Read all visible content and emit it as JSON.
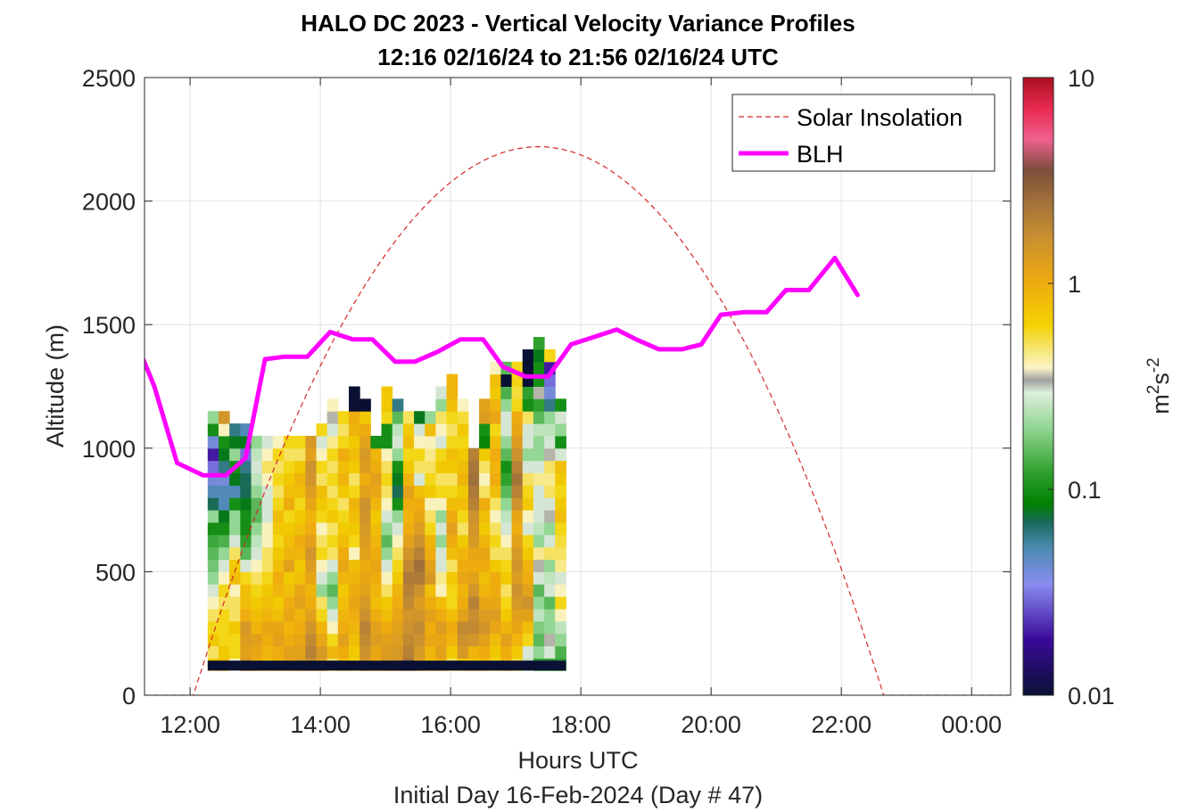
{
  "chart_data": {
    "type": "heatmap",
    "title_line1": "HALO DC 2023 - Vertical Velocity Variance Profiles",
    "title_line2": "12:16 02/16/24 to 21:56 02/16/24  UTC",
    "xlabel": "Hours UTC",
    "xlabel2": "Initial Day 16-Feb-2024 (Day # 47)",
    "ylabel": "Altitude (m)",
    "xlim_hours": [
      11.3,
      24.6
    ],
    "ylim": [
      0,
      2500
    ],
    "x_ticks": [
      {
        "value": 12,
        "label": "12:00"
      },
      {
        "value": 14,
        "label": "14:00"
      },
      {
        "value": 16,
        "label": "16:00"
      },
      {
        "value": 18,
        "label": "18:00"
      },
      {
        "value": 20,
        "label": "20:00"
      },
      {
        "value": 22,
        "label": "22:00"
      },
      {
        "value": 24,
        "label": "00:00"
      }
    ],
    "y_ticks": [
      {
        "value": 0,
        "label": "0"
      },
      {
        "value": 500,
        "label": "500"
      },
      {
        "value": 1000,
        "label": "1000"
      },
      {
        "value": 1500,
        "label": "1500"
      },
      {
        "value": 2000,
        "label": "2000"
      },
      {
        "value": 2500,
        "label": "2500"
      }
    ],
    "grid": true,
    "legend": {
      "location": "top-right",
      "entries": [
        {
          "name": "Solar Insolation",
          "color": "#d62728",
          "style": "dashed"
        },
        {
          "name": "BLH",
          "color": "#ff00ff",
          "style": "solid"
        }
      ]
    },
    "colorbar": {
      "label": "m²s⁻²",
      "label_base": "m",
      "label_sup1": "2",
      "label_mid": "s",
      "label_sup2": "-2",
      "scale": "log",
      "range": [
        0.01,
        10
      ],
      "ticks": [
        {
          "value": 0.01,
          "label": "0.01"
        },
        {
          "value": 0.1,
          "label": "0.1"
        },
        {
          "value": 1,
          "label": "1"
        },
        {
          "value": 10,
          "label": "10"
        }
      ],
      "colormap": [
        {
          "pos": 0.0,
          "color": "#0a1033"
        },
        {
          "pos": 0.09,
          "color": "#3a0a9a"
        },
        {
          "pos": 0.18,
          "color": "#8a8cf0"
        },
        {
          "pos": 0.24,
          "color": "#4a8ab0"
        },
        {
          "pos": 0.28,
          "color": "#1a6a5a"
        },
        {
          "pos": 0.31,
          "color": "#008000"
        },
        {
          "pos": 0.36,
          "color": "#2ea02e"
        },
        {
          "pos": 0.43,
          "color": "#8fd48f"
        },
        {
          "pos": 0.49,
          "color": "#dcefdc"
        },
        {
          "pos": 0.51,
          "color": "#a0a0a0"
        },
        {
          "pos": 0.53,
          "color": "#fbf4c8"
        },
        {
          "pos": 0.6,
          "color": "#f2d200"
        },
        {
          "pos": 0.67,
          "color": "#eeaa10"
        },
        {
          "pos": 0.74,
          "color": "#c99030"
        },
        {
          "pos": 0.8,
          "color": "#a0703a"
        },
        {
          "pos": 0.85,
          "color": "#7d4d3b"
        },
        {
          "pos": 0.9,
          "color": "#f06090"
        },
        {
          "pos": 0.95,
          "color": "#e82a50"
        },
        {
          "pos": 1.0,
          "color": "#aa1020"
        }
      ]
    },
    "heatmap": {
      "time_start": 12.27,
      "time_step": 0.1667,
      "alt_start": 100,
      "alt_step": 50,
      "columns": [
        {
          "top": 1450,
          "vals": [
            0.7,
            0.5,
            0.7,
            0.6,
            0.5,
            0.4,
            0.3,
            0.2,
            0.17,
            0.15,
            0.13,
            0.1,
            0.2,
            0.07,
            0.05,
            0.04,
            0.03,
            0.02,
            0.04,
            0.1,
            0.2
          ]
        },
        {
          "top": 1500,
          "vals": [
            0.8,
            0.7,
            0.6,
            0.6,
            0.6,
            0.5,
            0.6,
            0.4,
            0.3,
            0.2,
            0.14,
            0.1,
            0.08,
            0.05,
            0.05,
            0.04,
            0.06,
            0.08,
            0.1,
            0.4,
            1.5
          ]
        },
        {
          "top": 1450,
          "vals": [
            0.4,
            0.6,
            0.6,
            0.7,
            0.5,
            0.5,
            0.4,
            0.8,
            0.7,
            0.5,
            0.3,
            0.2,
            0.2,
            0.1,
            0.05,
            0.08,
            0.1,
            0.2,
            0.08,
            0.06
          ]
        },
        {
          "top": 1500,
          "vals": [
            1.5,
            1.2,
            1.3,
            1.4,
            1.0,
            0.8,
            0.8,
            0.6,
            0.3,
            0.15,
            0.12,
            0.1,
            0.1,
            0.08,
            0.07,
            0.07,
            0.06,
            0.03,
            0.08,
            0.05
          ]
        },
        {
          "top": 1450,
          "vals": [
            1.0,
            1.1,
            1.2,
            0.9,
            0.8,
            0.7,
            0.6,
            0.5,
            0.4,
            0.3,
            0.25,
            0.2,
            0.15,
            0.15,
            0.2,
            0.25,
            0.3,
            0.25,
            0.2
          ]
        },
        {
          "top": 1450,
          "vals": [
            0.8,
            0.9,
            1.0,
            1.1,
            0.9,
            0.8,
            0.7,
            0.6,
            0.5,
            0.5,
            0.4,
            0.4,
            0.3,
            0.3,
            0.3,
            0.4,
            0.5,
            0.4,
            0.3
          ]
        },
        {
          "top": 1450,
          "vals": [
            0.9,
            1.0,
            1.2,
            1.1,
            0.8,
            0.7,
            0.9,
            1.0,
            0.8,
            0.7,
            0.6,
            0.7,
            0.8,
            0.6,
            0.5,
            0.6,
            0.5,
            0.6,
            0.4
          ]
        },
        {
          "top": 1450,
          "vals": [
            1.1,
            1.2,
            1.0,
            0.9,
            1.1,
            1.0,
            0.8,
            0.7,
            1.2,
            0.9,
            0.8,
            0.7,
            0.6,
            1.0,
            0.8,
            0.7,
            0.6,
            0.5,
            0.6
          ]
        },
        {
          "top": 1450,
          "vals": [
            1.3,
            1.2,
            1.1,
            1.0,
            0.9,
            1.2,
            1.1,
            0.8,
            0.7,
            0.9,
            1.0,
            0.8,
            0.7,
            0.6,
            0.8,
            0.9,
            0.7,
            0.5,
            0.6
          ]
        },
        {
          "top": 1450,
          "vals": [
            1.6,
            2.0,
            1.8,
            1.5,
            1.2,
            1.0,
            0.9,
            1.1,
            1.3,
            1.5,
            1.2,
            1.0,
            0.9,
            1.1,
            1.3,
            1.5,
            1.6,
            1.2,
            1.4
          ]
        },
        {
          "top": 1500,
          "vals": [
            1.2,
            1.4,
            1.1,
            0.9,
            0.6,
            0.5,
            0.2,
            0.3,
            0.4,
            0.6,
            0.5,
            0.4,
            0.6,
            0.7,
            0.8,
            0.5,
            0.6,
            0.4,
            0.3,
            0.6
          ]
        },
        {
          "top": 1600,
          "vals": [
            0.5,
            0.9,
            0.6,
            0.4,
            0.3,
            0.2,
            0.15,
            0.2,
            0.3,
            0.5,
            0.6,
            0.5,
            0.7,
            0.6,
            0.5,
            0.6,
            0.5,
            0.6,
            0.45,
            0.3,
            0.35,
            0.4
          ]
        },
        {
          "top": 1550,
          "vals": [
            0.8,
            1.0,
            1.2,
            1.0,
            0.9,
            0.8,
            0.7,
            0.9,
            1.1,
            1.0,
            0.8,
            0.7,
            0.6,
            0.5,
            0.7,
            0.9,
            0.8,
            1.0,
            0.6,
            0.5,
            0.6
          ]
        },
        {
          "top": 1650,
          "vals": [
            0.6,
            0.7,
            0.8,
            0.9,
            1.0,
            1.1,
            1.0,
            0.9,
            0.8,
            0.4,
            0.6,
            0.7,
            0.8,
            0.9,
            0.6,
            0.5,
            0.7,
            0.8,
            0.7,
            0.9,
            1.0,
            0.01,
            0.01
          ]
        },
        {
          "top": 1600,
          "vals": [
            1.4,
            1.6,
            1.8,
            2.0,
            1.6,
            1.4,
            1.2,
            1.1,
            1.0,
            1.2,
            1.3,
            1.4,
            1.5,
            1.6,
            1.2,
            1.0,
            1.3,
            1.4,
            1.2,
            1.0,
            0.7,
            0.01
          ]
        },
        {
          "top": 1450,
          "vals": [
            1.0,
            1.1,
            1.3,
            1.2,
            1.0,
            0.8,
            0.9,
            1.0,
            1.1,
            1.0,
            0.9,
            0.8,
            0.7,
            0.9,
            1.1,
            1.2,
            1.0,
            0.9,
            0.1
          ]
        },
        {
          "top": 1650,
          "vals": [
            1.4,
            1.3,
            1.2,
            1.0,
            0.8,
            0.7,
            0.5,
            0.4,
            0.3,
            0.2,
            0.15,
            0.2,
            0.3,
            0.4,
            0.5,
            0.6,
            0.5,
            0.4,
            0.1,
            0.1,
            0.6,
            0.7,
            0.7
          ]
        },
        {
          "top": 1600,
          "vals": [
            1.5,
            1.4,
            1.3,
            1.2,
            1.1,
            1.0,
            0.9,
            0.7,
            0.6,
            0.5,
            0.4,
            0.3,
            0.2,
            0.1,
            0.07,
            0.08,
            0.1,
            0.2,
            0.3,
            0.25,
            0.15,
            0.06
          ]
        },
        {
          "top": 1550,
          "vals": [
            2.5,
            2.0,
            1.8,
            1.6,
            1.5,
            1.8,
            2.0,
            2.2,
            1.8,
            1.5,
            1.2,
            1.0,
            0.9,
            1.0,
            1.2,
            0.9,
            0.7,
            0.6,
            0.8,
            0.7,
            0.5
          ]
        },
        {
          "top": 1550,
          "vals": [
            1.2,
            1.4,
            1.6,
            1.8,
            1.5,
            1.3,
            1.6,
            2.2,
            2.5,
            2.0,
            1.6,
            1.3,
            1.1,
            1.0,
            0.8,
            0.3,
            0.5,
            0.6,
            0.4,
            0.3,
            0.08
          ]
        },
        {
          "top": 1550,
          "vals": [
            0.8,
            0.9,
            1.1,
            1.0,
            1.2,
            1.0,
            0.8,
            1.4,
            1.2,
            1.0,
            0.9,
            0.6,
            0.5,
            0.4,
            0.7,
            0.6,
            0.5,
            0.45,
            0.4,
            0.8,
            0.2
          ]
        },
        {
          "top": 1650,
          "vals": [
            1.0,
            1.2,
            1.1,
            1.3,
            1.0,
            0.8,
            0.4,
            0.45,
            0.3,
            0.3,
            0.2,
            0.3,
            0.2,
            0.4,
            0.6,
            0.5,
            0.7,
            0.6,
            0.3,
            0.4,
            0.5,
            0.2,
            0.3
          ]
        },
        {
          "top": 1700,
          "vals": [
            0.5,
            0.7,
            0.9,
            1.0,
            0.8,
            0.6,
            0.6,
            0.7,
            0.5,
            0.8,
            1.0,
            1.2,
            1.0,
            0.8,
            0.6,
            0.5,
            0.7,
            0.8,
            0.6,
            0.5,
            0.6,
            0.8,
            0.9,
            0.9
          ]
        },
        {
          "top": 1600,
          "vals": [
            0.7,
            1.4,
            1.6,
            1.8,
            1.2,
            1.0,
            0.9,
            1.1,
            1.0,
            0.9,
            0.7,
            0.5,
            0.6,
            0.8,
            0.7,
            0.9,
            0.8,
            0.7,
            0.6,
            0.7,
            0.55,
            0.4
          ]
        },
        {
          "top": 1500,
          "vals": [
            0.7,
            0.9,
            1.5,
            1.8,
            1.7,
            2.0,
            1.5,
            1.2,
            1.0,
            1.1,
            1.4,
            1.5,
            1.6,
            2.0,
            2.2,
            2.5,
            2.3,
            2.0
          ]
        },
        {
          "top": 1600,
          "vals": [
            0.8,
            1.0,
            1.2,
            1.5,
            1.3,
            1.1,
            0.9,
            0.8,
            1.0,
            1.1,
            0.9,
            0.7,
            0.8,
            1.0,
            0.5,
            0.4,
            0.5,
            0.7,
            0.09,
            0.1,
            1.3,
            1.2
          ]
        },
        {
          "top": 1750,
          "vals": [
            0.6,
            0.7,
            0.8,
            1.1,
            1.3,
            1.1,
            1.0,
            1.0,
            0.7,
            0.5,
            0.6,
            0.5,
            0.4,
            0.5,
            0.8,
            1.0,
            0.9,
            1.0,
            0.8,
            0.6,
            1.1,
            0.9,
            0.7,
            0.8,
            0.4
          ]
        },
        {
          "top": 1700,
          "vals": [
            0.9,
            1.0,
            1.2,
            0.9,
            0.7,
            0.6,
            0.5,
            0.7,
            0.6,
            0.5,
            0.4,
            0.3,
            0.25,
            0.2,
            0.15,
            0.12,
            0.1,
            0.15,
            0.2,
            0.3,
            0.3,
            0.2,
            0.14,
            0.01,
            0.15
          ]
        },
        {
          "top": 1700,
          "vals": [
            0.55,
            0.7,
            0.9,
            1.1,
            1.2,
            1.4,
            1.6,
            1.3,
            1.5,
            1.4,
            1.2,
            1.0,
            1.1,
            1.6,
            2.0,
            2.4,
            2.0,
            1.6,
            1.3,
            1.1,
            1.0,
            0.6,
            0.55,
            0.6,
            0.6
          ]
        },
        {
          "top": 1750,
          "vals": [
            0.25,
            0.3,
            0.6,
            0.8,
            1.2,
            1.6,
            1.2,
            1.0,
            0.9,
            0.7,
            0.6,
            0.3,
            0.4,
            0.7,
            0.6,
            0.5,
            0.3,
            0.2,
            0.3,
            0.3,
            0.5,
            0.1,
            0.12,
            0.01,
            0.01,
            0.01
          ]
        },
        {
          "top": 1850,
          "vals": [
            0.12,
            0.2,
            0.15,
            0.18,
            0.25,
            0.2,
            0.15,
            0.3,
            0.35,
            0.45,
            0.2,
            0.25,
            0.3,
            0.3,
            0.3,
            0.45,
            0.3,
            0.2,
            0.2,
            0.25,
            0.15,
            0.12,
            0.35,
            0.1,
            0.1,
            0.08,
            0.12
          ]
        },
        {
          "top": 1800,
          "vals": [
            0.12,
            0.3,
            0.35,
            0.2,
            0.2,
            0.15,
            0.3,
            0.25,
            0.2,
            0.5,
            0.3,
            0.2,
            0.35,
            0.3,
            0.5,
            0.45,
            0.5,
            0.35,
            0.3,
            0.25,
            0.2,
            0.06,
            0.04,
            0.03,
            0.02,
            0.6
          ]
        },
        {
          "top": 1550,
          "vals": [
            0.12,
            0.14,
            0.2,
            0.25,
            0.4,
            0.6,
            0.4,
            0.3,
            0.45,
            0.5,
            0.55,
            0.6,
            0.8,
            0.7,
            0.6,
            0.7,
            0.8,
            0.3,
            0.1,
            0.2,
            0.3,
            0.1
          ]
        }
      ],
      "bottom_band": {
        "alt_from": 100,
        "alt_to": 140,
        "value": 0.01
      }
    },
    "solar_insolation": {
      "sunrise_hours": 12.05,
      "sunset_hours": 22.65,
      "peak_hours": 17.35,
      "peak_alt": 2220,
      "night_value": 0
    },
    "blh": {
      "x_hours": [
        11.28,
        11.45,
        11.8,
        12.2,
        12.55,
        12.85,
        13.15,
        13.45,
        13.8,
        14.15,
        14.5,
        14.8,
        15.15,
        15.45,
        15.8,
        16.15,
        16.5,
        16.8,
        17.15,
        17.5,
        17.85,
        18.2,
        18.55,
        18.85,
        19.2,
        19.55,
        19.85,
        20.15,
        20.5,
        20.85,
        21.15,
        21.5,
        21.9,
        22.25
      ],
      "y": [
        1360,
        1250,
        940,
        890,
        890,
        960,
        1360,
        1370,
        1370,
        1470,
        1440,
        1440,
        1350,
        1350,
        1390,
        1440,
        1440,
        1330,
        1290,
        1290,
        1420,
        1450,
        1480,
        1440,
        1400,
        1400,
        1420,
        1540,
        1550,
        1550,
        1640,
        1640,
        1770,
        1620
      ]
    }
  }
}
